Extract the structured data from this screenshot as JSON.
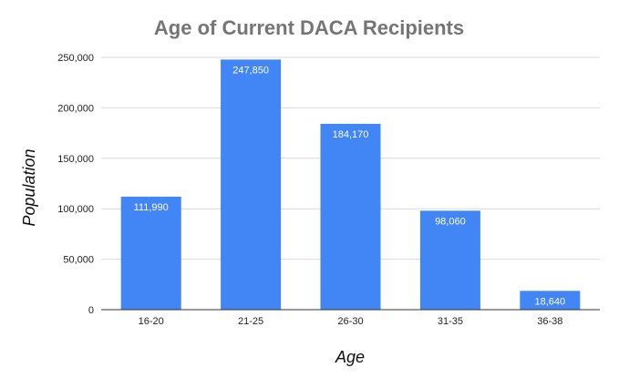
{
  "chart_data": {
    "type": "bar",
    "title": "Age of Current DACA Recipients",
    "xlabel": "Age",
    "ylabel": "Population",
    "categories": [
      "16-20",
      "21-25",
      "26-30",
      "31-35",
      "36-38"
    ],
    "values": [
      111990,
      247850,
      184170,
      98060,
      18640
    ],
    "data_labels": [
      "111,990",
      "247,850",
      "184,170",
      "98,060",
      "18,640"
    ],
    "y_ticks": [
      0,
      50000,
      100000,
      150000,
      200000,
      250000
    ],
    "y_tick_labels": [
      "0",
      "50,000",
      "100,000",
      "150,000",
      "200,000",
      "250,000"
    ],
    "ylim": [
      0,
      250000
    ],
    "grid": true,
    "legend": "none",
    "bar_color": "#4285f4"
  }
}
